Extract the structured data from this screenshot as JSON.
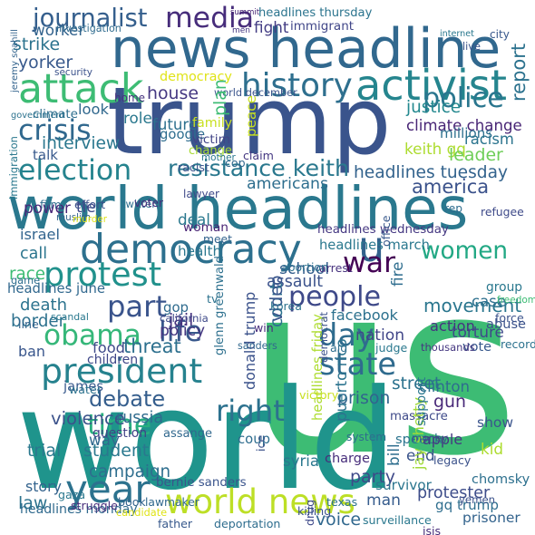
{
  "words": [
    {
      "text": "us",
      "color": "#3dbc74",
      "vertical": false
    },
    {
      "text": "world",
      "color": "#1f948c",
      "vertical": false
    },
    {
      "text": "trump",
      "color": "#3a548c",
      "vertical": false
    },
    {
      "text": "world headlines",
      "color": "#2a788e",
      "vertical": false
    },
    {
      "text": "news headline",
      "color": "#31688e",
      "vertical": false
    },
    {
      "text": "democracy",
      "color": "#2d708e",
      "vertical": false
    },
    {
      "text": "u",
      "color": "#33628d",
      "vertical": false
    },
    {
      "text": "world news",
      "color": "#bddf26",
      "vertical": false
    },
    {
      "text": "war",
      "color": "#440154",
      "vertical": false
    },
    {
      "text": "activist",
      "color": "#25858e",
      "vertical": false
    },
    {
      "text": "attack",
      "color": "#3dbc74",
      "vertical": false
    },
    {
      "text": "history",
      "color": "#2e6f8e",
      "vertical": false
    },
    {
      "text": "resistance keith",
      "color": "#2a788e",
      "vertical": false
    },
    {
      "text": "protest",
      "color": "#21918c",
      "vertical": false
    },
    {
      "text": "president",
      "color": "#26828e",
      "vertical": false
    },
    {
      "text": "obama",
      "color": "#35b779",
      "vertical": false
    },
    {
      "text": "people",
      "color": "#3e4989",
      "vertical": false
    },
    {
      "text": "year",
      "color": "#2c728e",
      "vertical": false
    },
    {
      "text": "election",
      "color": "#25838e",
      "vertical": false
    },
    {
      "text": "crisis",
      "color": "#30688e",
      "vertical": false
    },
    {
      "text": "media",
      "color": "#472d7b",
      "vertical": false
    },
    {
      "text": "journalist",
      "color": "#355f8d",
      "vertical": false
    },
    {
      "text": "police",
      "color": "#2a768e",
      "vertical": false
    },
    {
      "text": "keith gq",
      "color": "#addc30",
      "vertical": false
    },
    {
      "text": "women",
      "color": "#22a884",
      "vertical": false
    },
    {
      "text": "day",
      "color": "#2f6c8e",
      "vertical": false
    },
    {
      "text": "right",
      "color": "#2c718e",
      "vertical": false
    },
    {
      "text": "state",
      "color": "#2f6b8e",
      "vertical": false
    },
    {
      "text": "debate",
      "color": "#355e8d",
      "vertical": false
    },
    {
      "text": "part",
      "color": "#3a548c",
      "vertical": false
    },
    {
      "text": "life",
      "color": "#38588c",
      "vertical": false
    },
    {
      "text": "time",
      "color": "#29af7f",
      "vertical": false
    },
    {
      "text": "headlines tuesday",
      "color": "#33638d",
      "vertical": false
    },
    {
      "text": "climate change",
      "color": "#482575",
      "vertical": false
    },
    {
      "text": "america",
      "color": "#3b528b",
      "vertical": false
    },
    {
      "text": "americans",
      "color": "#2e6e8e",
      "vertical": false
    },
    {
      "text": "headlines wednesday",
      "color": "#453882",
      "vertical": false
    },
    {
      "text": "headlines march",
      "color": "#2a788e",
      "vertical": false
    },
    {
      "text": "headlines thursday",
      "color": "#2b748e",
      "vertical": false
    },
    {
      "text": "fight",
      "color": "#433d84",
      "vertical": false
    },
    {
      "text": "immigrant",
      "color": "#404688",
      "vertical": false
    },
    {
      "text": "strike",
      "color": "#2c738e",
      "vertical": false
    },
    {
      "text": "yorker",
      "color": "#38598c",
      "vertical": false
    },
    {
      "text": "worker",
      "color": "#33638d",
      "vertical": false
    },
    {
      "text": "democracy",
      "color": "#dfe318",
      "vertical": false
    },
    {
      "text": "house",
      "color": "#453882",
      "vertical": false
    },
    {
      "text": "world december",
      "color": "#3a548c",
      "vertical": false
    },
    {
      "text": "justice",
      "color": "#23888e",
      "vertical": false
    },
    {
      "text": "millions",
      "color": "#2d708e",
      "vertical": false
    },
    {
      "text": "leader",
      "color": "#6ece58",
      "vertical": false
    },
    {
      "text": "racism",
      "color": "#2b748e",
      "vertical": false
    },
    {
      "text": "interview",
      "color": "#2a778e",
      "vertical": false
    },
    {
      "text": "climate",
      "color": "#2e6e8e",
      "vertical": false
    },
    {
      "text": "look",
      "color": "#31688e",
      "vertical": false
    },
    {
      "text": "role",
      "color": "#2a788e",
      "vertical": false
    },
    {
      "text": "future",
      "color": "#2d708e",
      "vertical": false
    },
    {
      "text": "google",
      "color": "#2e6d8e",
      "vertical": false
    },
    {
      "text": "victim",
      "color": "#414487",
      "vertical": false
    },
    {
      "text": "change",
      "color": "#a8db34",
      "vertical": false
    },
    {
      "text": "family",
      "color": "#c8e020",
      "vertical": false
    },
    {
      "text": "home",
      "color": "#46327e",
      "vertical": false
    },
    {
      "text": "talk",
      "color": "#38598c",
      "vertical": false
    },
    {
      "text": "power",
      "color": "#482677",
      "vertical": false
    },
    {
      "text": "tie",
      "color": "#3f4788",
      "vertical": false
    },
    {
      "text": "deal",
      "color": "#2a788e",
      "vertical": false
    },
    {
      "text": "health",
      "color": "#2a778e",
      "vertical": false
    },
    {
      "text": "woman",
      "color": "#482374",
      "vertical": false
    },
    {
      "text": "meet",
      "color": "#33638d",
      "vertical": false
    },
    {
      "text": "israel",
      "color": "#32648e",
      "vertical": false
    },
    {
      "text": "call",
      "color": "#2b758e",
      "vertical": false
    },
    {
      "text": "race",
      "color": "#3dbc74",
      "vertical": false
    },
    {
      "text": "headlines june",
      "color": "#31688e",
      "vertical": false
    },
    {
      "text": "death",
      "color": "#2c738e",
      "vertical": false
    },
    {
      "text": "border",
      "color": "#2d718e",
      "vertical": false
    },
    {
      "text": "jail",
      "color": "#46327e",
      "vertical": false
    },
    {
      "text": "gop",
      "color": "#2f6b8e",
      "vertical": false
    },
    {
      "text": "school",
      "color": "#355e8d",
      "vertical": false
    },
    {
      "text": "assault",
      "color": "#3b528b",
      "vertical": false
    },
    {
      "text": "facebook",
      "color": "#2c718e",
      "vertical": false
    },
    {
      "text": "movement",
      "color": "#2a768e",
      "vertical": false
    },
    {
      "text": "nation",
      "color": "#404588",
      "vertical": false
    },
    {
      "text": "vote",
      "color": "#38588c",
      "vertical": false
    },
    {
      "text": "street",
      "color": "#2c728e",
      "vertical": false
    },
    {
      "text": "prison",
      "color": "#32648e",
      "vertical": false
    },
    {
      "text": "clinton",
      "color": "#2e6d8e",
      "vertical": false
    },
    {
      "text": "massacre",
      "color": "#3e4a89",
      "vertical": false
    },
    {
      "text": "speech",
      "color": "#2b748e",
      "vertical": false
    },
    {
      "text": "end",
      "color": "#3a538b",
      "vertical": false
    },
    {
      "text": "protester",
      "color": "#3d4d8a",
      "vertical": false
    },
    {
      "text": "action",
      "color": "#46337f",
      "vertical": false
    },
    {
      "text": "case",
      "color": "#2d708e",
      "vertical": false
    },
    {
      "text": "group",
      "color": "#2a788e",
      "vertical": false
    },
    {
      "text": "abuse",
      "color": "#3b528b",
      "vertical": false
    },
    {
      "text": "record",
      "color": "#2c728e",
      "vertical": false
    },
    {
      "text": "torture",
      "color": "#3e4989",
      "vertical": false
    },
    {
      "text": "gun",
      "color": "#482878",
      "vertical": false
    },
    {
      "text": "threat",
      "color": "#2d708e",
      "vertical": false
    },
    {
      "text": "food",
      "color": "#3e4a89",
      "vertical": false
    },
    {
      "text": "policy",
      "color": "#453781",
      "vertical": false
    },
    {
      "text": "children",
      "color": "#3f4788",
      "vertical": false
    },
    {
      "text": "ban",
      "color": "#39568c",
      "vertical": false
    },
    {
      "text": "james",
      "color": "#38598c",
      "vertical": false
    },
    {
      "text": "violence",
      "color": "#3b528b",
      "vertical": false
    },
    {
      "text": "russia",
      "color": "#2f6b8e",
      "vertical": false
    },
    {
      "text": "assange",
      "color": "#31688e",
      "vertical": false
    },
    {
      "text": "question",
      "color": "#424186",
      "vertical": false
    },
    {
      "text": "student",
      "color": "#2a788e",
      "vertical": false
    },
    {
      "text": "campaign",
      "color": "#2e6e8e",
      "vertical": false
    },
    {
      "text": "bernie sanders",
      "color": "#3a548c",
      "vertical": false
    },
    {
      "text": "headlines monday",
      "color": "#306a8e",
      "vertical": false
    },
    {
      "text": "law",
      "color": "#2c728e",
      "vertical": false
    },
    {
      "text": "story",
      "color": "#33638d",
      "vertical": false
    },
    {
      "text": "trial",
      "color": "#2a788e",
      "vertical": false
    },
    {
      "text": "way",
      "color": "#31688e",
      "vertical": false
    },
    {
      "text": "coup",
      "color": "#2e6d8e",
      "vertical": false
    },
    {
      "text": "charge",
      "color": "#472d7b",
      "vertical": false
    },
    {
      "text": "party",
      "color": "#3e4989",
      "vertical": false
    },
    {
      "text": "survivor",
      "color": "#2b758e",
      "vertical": false
    },
    {
      "text": "man",
      "color": "#365c8d",
      "vertical": false
    },
    {
      "text": "voice",
      "color": "#31688e",
      "vertical": false
    },
    {
      "text": "prisoner",
      "color": "#33638d",
      "vertical": false
    },
    {
      "text": "gq trump",
      "color": "#2e6e8e",
      "vertical": false
    },
    {
      "text": "chomsky",
      "color": "#2d708e",
      "vertical": false
    },
    {
      "text": "apple",
      "color": "#453882",
      "vertical": false
    },
    {
      "text": "kid",
      "color": "#addc30",
      "vertical": false
    },
    {
      "text": "show",
      "color": "#3a548c",
      "vertical": false
    },
    {
      "text": "syria",
      "color": "#2a788e",
      "vertical": false
    },
    {
      "text": "report",
      "color": "#2c728e",
      "vertical": true
    },
    {
      "text": "headlines friday",
      "color": "#addc30",
      "vertical": true
    },
    {
      "text": "glenn greenwald",
      "color": "#2d708e",
      "vertical": true
    },
    {
      "text": "donald trump",
      "color": "#3b528b",
      "vertical": true
    },
    {
      "text": "puerto rico",
      "color": "#2c738e",
      "vertical": true
    },
    {
      "text": "court",
      "color": "#2c728e",
      "vertical": true
    },
    {
      "text": "bill",
      "color": "#2e6e8e",
      "vertical": true
    },
    {
      "text": "jay shetty",
      "color": "#a0da39",
      "vertical": true
    },
    {
      "text": "video",
      "color": "#39568c",
      "vertical": true
    },
    {
      "text": "plan",
      "color": "#3dbc74",
      "vertical": true
    },
    {
      "text": "peace",
      "color": "#c8e020",
      "vertical": true
    },
    {
      "text": "democrat",
      "color": "#3b528b",
      "vertical": true
    },
    {
      "text": "fire",
      "color": "#2e6d8e",
      "vertical": true
    },
    {
      "text": "support",
      "color": "#2a788e",
      "vertical": true
    },
    {
      "text": "summit",
      "color": "#482575",
      "vertical": false
    },
    {
      "text": "men",
      "color": "#453781",
      "vertical": false
    },
    {
      "text": "investigation",
      "color": "#2f6b8e",
      "vertical": false
    },
    {
      "text": "internet",
      "color": "#2a788e",
      "vertical": false
    },
    {
      "text": "city",
      "color": "#38588c",
      "vertical": false
    },
    {
      "text": "live",
      "color": "#3a548c",
      "vertical": false
    },
    {
      "text": "jeremy scahill",
      "color": "#33638d",
      "vertical": true
    },
    {
      "text": "security",
      "color": "#3b528b",
      "vertical": false
    },
    {
      "text": "government",
      "color": "#2c728e",
      "vertical": false
    },
    {
      "text": "immigration",
      "color": "#2a788e",
      "vertical": true
    },
    {
      "text": "effort",
      "color": "#3b528b",
      "vertical": false
    },
    {
      "text": "twitter",
      "color": "#2e6e8e",
      "vertical": false
    },
    {
      "text": "muslim",
      "color": "#33638d",
      "vertical": false
    },
    {
      "text": "film",
      "color": "#2f6b8e",
      "vertical": false
    },
    {
      "text": "voter",
      "color": "#472d7b",
      "vertical": false
    },
    {
      "text": "lawyer",
      "color": "#3e4989",
      "vertical": false
    },
    {
      "text": "racist",
      "color": "#3b528b",
      "vertical": false
    },
    {
      "text": "mother",
      "color": "#2a788e",
      "vertical": false
    },
    {
      "text": "claim",
      "color": "#453882",
      "vertical": false
    },
    {
      "text": "cop",
      "color": "#31688e",
      "vertical": false
    },
    {
      "text": "rep",
      "color": "#2e6d8e",
      "vertical": false
    },
    {
      "text": "refugee",
      "color": "#3e4a89",
      "vertical": false
    },
    {
      "text": "office",
      "color": "#38598c",
      "vertical": true
    },
    {
      "text": "arrest",
      "color": "#46327e",
      "vertical": false
    },
    {
      "text": "abortion",
      "color": "#2d708e",
      "vertical": false
    },
    {
      "text": "korea",
      "color": "#2c728e",
      "vertical": false
    },
    {
      "text": "freedom",
      "color": "#3dbc74",
      "vertical": false
    },
    {
      "text": "force",
      "color": "#3b528b",
      "vertical": false
    },
    {
      "text": "murder",
      "color": "#dfe318",
      "vertical": false
    },
    {
      "text": "game",
      "color": "#2e6d8e",
      "vertical": false
    },
    {
      "text": "ice",
      "color": "#3b528b",
      "vertical": true
    },
    {
      "text": "line",
      "color": "#33638d",
      "vertical": false
    },
    {
      "text": "scandal",
      "color": "#2a788e",
      "vertical": false
    },
    {
      "text": "california",
      "color": "#3e4989",
      "vertical": false
    },
    {
      "text": "tv",
      "color": "#2c728e",
      "vertical": false
    },
    {
      "text": "win",
      "color": "#472d7b",
      "vertical": false
    },
    {
      "text": "sanders",
      "color": "#31688e",
      "vertical": false
    },
    {
      "text": "aid",
      "color": "#2e6e8e",
      "vertical": false
    },
    {
      "text": "money",
      "color": "#3b528b",
      "vertical": false
    },
    {
      "text": "judge",
      "color": "#2a788e",
      "vertical": false
    },
    {
      "text": "thousands",
      "color": "#453781",
      "vertical": false
    },
    {
      "text": "victory",
      "color": "#c8e020",
      "vertical": false
    },
    {
      "text": "water",
      "color": "#2c728e",
      "vertical": false
    },
    {
      "text": "system",
      "color": "#2e6e8e",
      "vertical": false
    },
    {
      "text": "legacy",
      "color": "#3b528b",
      "vertical": false
    },
    {
      "text": "struggle",
      "color": "#472d7b",
      "vertical": false
    },
    {
      "text": "book",
      "color": "#33638d",
      "vertical": false
    },
    {
      "text": "gaza",
      "color": "#2a788e",
      "vertical": false
    },
    {
      "text": "candidate",
      "color": "#dfe318",
      "vertical": false
    },
    {
      "text": "lawmaker",
      "color": "#31688e",
      "vertical": false
    },
    {
      "text": "drug",
      "color": "#3e4989",
      "vertical": true
    },
    {
      "text": "texas",
      "color": "#2c728e",
      "vertical": false
    },
    {
      "text": "killing",
      "color": "#3b528b",
      "vertical": false
    },
    {
      "text": "father",
      "color": "#38598c",
      "vertical": false
    },
    {
      "text": "deportation",
      "color": "#2e6d8e",
      "vertical": false
    },
    {
      "text": "surveillance",
      "color": "#2a788e",
      "vertical": false
    },
    {
      "text": "isis",
      "color": "#472d7b",
      "vertical": false
    },
    {
      "text": "yemen",
      "color": "#3b528b",
      "vertical": false
    }
  ]
}
